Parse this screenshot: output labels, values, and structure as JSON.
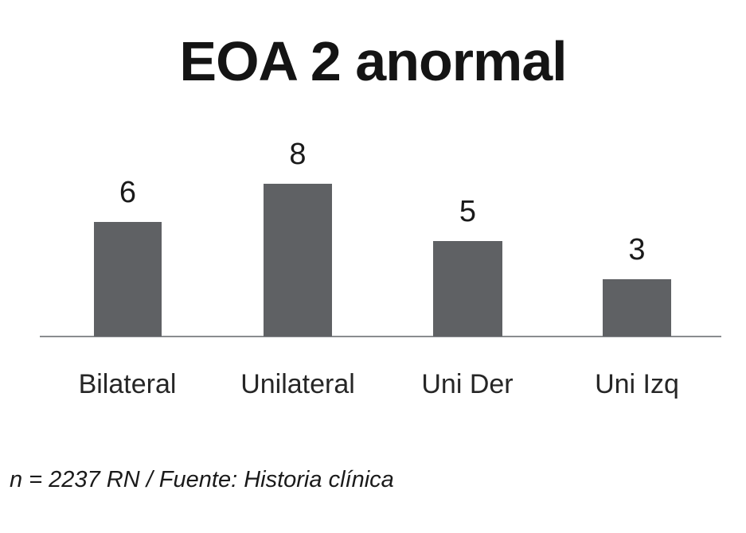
{
  "chart_data": {
    "type": "bar",
    "title": "EOA 2 anormal",
    "categories": [
      "Bilateral",
      "Unilateral",
      "Uni Der",
      "Uni Izq"
    ],
    "values": [
      6,
      8,
      5,
      3
    ],
    "data_labels_shown": true,
    "xlabel": "",
    "ylabel": "",
    "ylim": [
      0,
      8
    ],
    "grid": false,
    "legend": "none",
    "bar_color": "#5f6164",
    "axis_line_color": "#8a8c8f",
    "text_color": "#1a1a1a"
  },
  "footnote": "n = 2237 RN / Fuente: Historia clínica"
}
